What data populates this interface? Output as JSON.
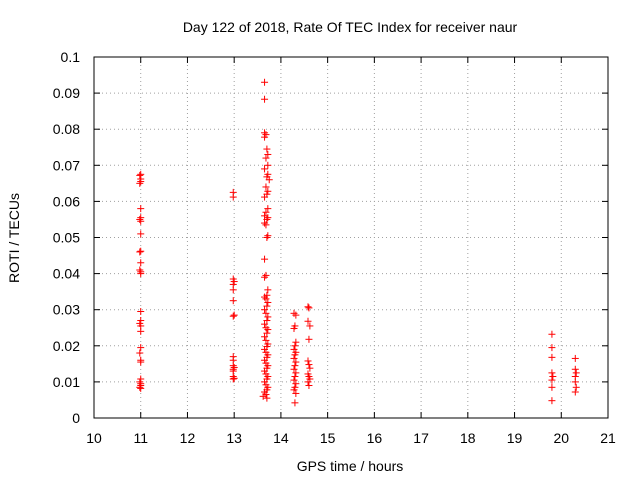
{
  "chart_data": {
    "type": "scatter",
    "title": "Day 122 of 2018, Rate Of TEC Index for receiver naur",
    "xlabel": "GPS time / hours",
    "ylabel": "ROTI / TECUs",
    "xlim": [
      10,
      21
    ],
    "ylim": [
      0,
      0.1
    ],
    "xticks": [
      "10",
      "11",
      "12",
      "13",
      "14",
      "15",
      "16",
      "17",
      "18",
      "19",
      "20",
      "21"
    ],
    "yticks": [
      "0",
      "0.01",
      "0.02",
      "0.03",
      "0.04",
      "0.05",
      "0.06",
      "0.07",
      "0.08",
      "0.09",
      "0.1"
    ],
    "grid": true,
    "marker": "plus",
    "marker_color": "#ff0000",
    "series": [
      {
        "points": [
          [
            10.98,
            0.0672
          ],
          [
            11.0,
            0.0675
          ],
          [
            11.0,
            0.0662
          ],
          [
            10.98,
            0.065
          ],
          [
            11.0,
            0.0655
          ],
          [
            11.0,
            0.058
          ],
          [
            10.98,
            0.055
          ],
          [
            11.0,
            0.0545
          ],
          [
            11.0,
            0.0555
          ],
          [
            11.0,
            0.051
          ],
          [
            10.98,
            0.046
          ],
          [
            11.0,
            0.0462
          ],
          [
            11.0,
            0.043
          ],
          [
            10.98,
            0.041
          ],
          [
            11.0,
            0.04
          ],
          [
            11.0,
            0.0405
          ],
          [
            11.0,
            0.0295
          ],
          [
            11.0,
            0.027
          ],
          [
            10.98,
            0.0262
          ],
          [
            11.0,
            0.0255
          ],
          [
            11.0,
            0.024
          ],
          [
            11.0,
            0.0195
          ],
          [
            10.98,
            0.018
          ],
          [
            11.0,
            0.016
          ],
          [
            11.0,
            0.0155
          ],
          [
            11.0,
            0.0108
          ],
          [
            10.98,
            0.01
          ],
          [
            11.0,
            0.0095
          ],
          [
            11.0,
            0.009
          ],
          [
            10.98,
            0.0085
          ],
          [
            11.0,
            0.0082
          ],
          [
            12.98,
            0.0625
          ],
          [
            12.98,
            0.0612
          ],
          [
            12.98,
            0.0385
          ],
          [
            13.0,
            0.0378
          ],
          [
            12.98,
            0.037
          ],
          [
            12.98,
            0.0355
          ],
          [
            12.98,
            0.0325
          ],
          [
            13.0,
            0.0285
          ],
          [
            12.98,
            0.0282
          ],
          [
            12.98,
            0.017
          ],
          [
            12.98,
            0.016
          ],
          [
            12.98,
            0.0145
          ],
          [
            13.0,
            0.014
          ],
          [
            12.98,
            0.0135
          ],
          [
            12.98,
            0.013
          ],
          [
            12.98,
            0.0115
          ],
          [
            13.0,
            0.011
          ],
          [
            12.98,
            0.0108
          ],
          [
            13.65,
            0.093
          ],
          [
            13.65,
            0.0883
          ],
          [
            13.65,
            0.079
          ],
          [
            13.68,
            0.0785
          ],
          [
            13.65,
            0.0778
          ],
          [
            13.7,
            0.0745
          ],
          [
            13.72,
            0.073
          ],
          [
            13.68,
            0.072
          ],
          [
            13.72,
            0.07
          ],
          [
            13.65,
            0.069
          ],
          [
            13.72,
            0.0675
          ],
          [
            13.7,
            0.0668
          ],
          [
            13.75,
            0.066
          ],
          [
            13.68,
            0.064
          ],
          [
            13.72,
            0.0628
          ],
          [
            13.7,
            0.062
          ],
          [
            13.65,
            0.0612
          ],
          [
            13.72,
            0.058
          ],
          [
            13.68,
            0.057
          ],
          [
            13.65,
            0.056
          ],
          [
            13.72,
            0.0555
          ],
          [
            13.7,
            0.055
          ],
          [
            13.65,
            0.054
          ],
          [
            13.68,
            0.0535
          ],
          [
            13.72,
            0.0505
          ],
          [
            13.7,
            0.05
          ],
          [
            13.65,
            0.044
          ],
          [
            13.68,
            0.0395
          ],
          [
            13.65,
            0.039
          ],
          [
            13.72,
            0.0355
          ],
          [
            13.7,
            0.034
          ],
          [
            13.65,
            0.0335
          ],
          [
            13.68,
            0.033
          ],
          [
            13.72,
            0.032
          ],
          [
            13.7,
            0.031
          ],
          [
            13.65,
            0.03
          ],
          [
            13.68,
            0.029
          ],
          [
            13.72,
            0.028
          ],
          [
            13.7,
            0.027
          ],
          [
            13.65,
            0.026
          ],
          [
            13.68,
            0.025
          ],
          [
            13.72,
            0.0245
          ],
          [
            13.7,
            0.0235
          ],
          [
            13.65,
            0.0225
          ],
          [
            13.68,
            0.0215
          ],
          [
            13.72,
            0.0205
          ],
          [
            13.7,
            0.0198
          ],
          [
            13.65,
            0.019
          ],
          [
            13.68,
            0.0182
          ],
          [
            13.72,
            0.0175
          ],
          [
            13.7,
            0.0168
          ],
          [
            13.65,
            0.016
          ],
          [
            13.68,
            0.0152
          ],
          [
            13.72,
            0.0145
          ],
          [
            13.7,
            0.0138
          ],
          [
            13.65,
            0.013
          ],
          [
            13.68,
            0.0122
          ],
          [
            13.72,
            0.0115
          ],
          [
            13.7,
            0.0108
          ],
          [
            13.65,
            0.01
          ],
          [
            13.68,
            0.0092
          ],
          [
            13.72,
            0.0085
          ],
          [
            13.7,
            0.0078
          ],
          [
            13.65,
            0.0072
          ],
          [
            13.68,
            0.0065
          ],
          [
            13.62,
            0.006
          ],
          [
            13.7,
            0.0055
          ],
          [
            14.28,
            0.029
          ],
          [
            14.32,
            0.0285
          ],
          [
            14.3,
            0.0255
          ],
          [
            14.28,
            0.0248
          ],
          [
            14.32,
            0.021
          ],
          [
            14.3,
            0.02
          ],
          [
            14.28,
            0.019
          ],
          [
            14.32,
            0.0182
          ],
          [
            14.3,
            0.0175
          ],
          [
            14.28,
            0.0165
          ],
          [
            14.32,
            0.0155
          ],
          [
            14.3,
            0.0145
          ],
          [
            14.28,
            0.0135
          ],
          [
            14.32,
            0.0125
          ],
          [
            14.3,
            0.0115
          ],
          [
            14.28,
            0.0105
          ],
          [
            14.32,
            0.0095
          ],
          [
            14.3,
            0.0085
          ],
          [
            14.28,
            0.0078
          ],
          [
            14.32,
            0.0068
          ],
          [
            14.3,
            0.0042
          ],
          [
            14.58,
            0.0308
          ],
          [
            14.6,
            0.0305
          ],
          [
            14.58,
            0.0268
          ],
          [
            14.62,
            0.0255
          ],
          [
            14.6,
            0.0218
          ],
          [
            14.58,
            0.0158
          ],
          [
            14.6,
            0.0148
          ],
          [
            14.62,
            0.0138
          ],
          [
            14.58,
            0.0122
          ],
          [
            14.6,
            0.0115
          ],
          [
            14.62,
            0.0108
          ],
          [
            14.58,
            0.01
          ],
          [
            14.6,
            0.009
          ],
          [
            19.8,
            0.0232
          ],
          [
            19.8,
            0.0195
          ],
          [
            19.8,
            0.0168
          ],
          [
            19.8,
            0.0125
          ],
          [
            19.82,
            0.0115
          ],
          [
            19.8,
            0.0105
          ],
          [
            19.8,
            0.0085
          ],
          [
            19.8,
            0.0048
          ],
          [
            20.3,
            0.0165
          ],
          [
            20.3,
            0.0135
          ],
          [
            20.32,
            0.0125
          ],
          [
            20.3,
            0.0115
          ],
          [
            20.3,
            0.01
          ],
          [
            20.32,
            0.0085
          ],
          [
            20.3,
            0.0072
          ]
        ]
      }
    ]
  }
}
